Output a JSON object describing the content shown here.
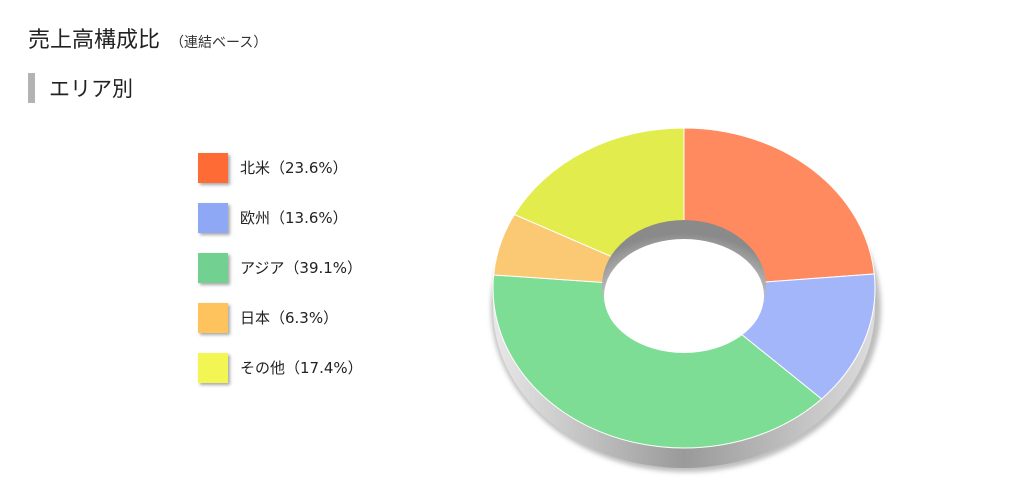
{
  "header": {
    "title": "売上高構成比",
    "subtitle": "（連結ベース）"
  },
  "section": {
    "title": "エリア別"
  },
  "legend": {
    "items": [
      {
        "label": "北米（23.6%）",
        "color": "#ff6b35"
      },
      {
        "label": "欧州（13.6%）",
        "color": "#8fa8f5"
      },
      {
        "label": "アジア（39.1%）",
        "color": "#72d090"
      },
      {
        "label": "日本（6.3%）",
        "color": "#ffc35e"
      },
      {
        "label": "その他（17.4%）",
        "color": "#f3f552"
      }
    ]
  },
  "chart_data": {
    "type": "pie",
    "variant": "donut-3d",
    "categories": [
      "北米",
      "欧州",
      "アジア",
      "日本",
      "その他"
    ],
    "values": [
      23.6,
      13.6,
      39.1,
      6.3,
      17.4
    ],
    "slice_colors": [
      "#ff8a5f",
      "#a4b6fa",
      "#7ddd94",
      "#fbc874",
      "#e2ec4c"
    ],
    "legend_placement": "left"
  }
}
